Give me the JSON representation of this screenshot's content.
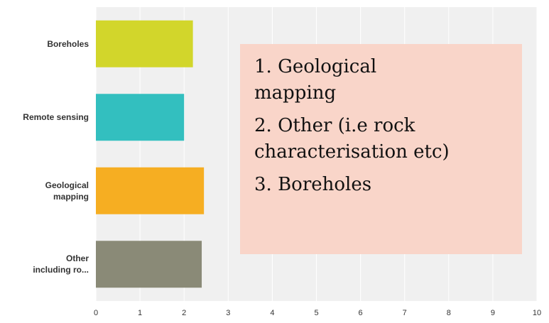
{
  "chart_data": {
    "type": "barh",
    "categories": [
      "Boreholes",
      "Remote sensing",
      "Geological\nmapping",
      "Other\nincluding ro..."
    ],
    "values": [
      2.2,
      2.0,
      2.45,
      2.4
    ],
    "colors": [
      "#d2d62b",
      "#33bfbf",
      "#f6ae22",
      "#8a8a77"
    ],
    "xlim": [
      0,
      10
    ],
    "xticks": [
      0,
      1,
      2,
      3,
      4,
      5,
      6,
      7,
      8,
      9,
      10
    ],
    "grid": true,
    "annotations": [
      "1. Geological\nmapping",
      "2. Other (i.e rock\ncharacterisation etc)",
      "3. Boreholes"
    ]
  }
}
